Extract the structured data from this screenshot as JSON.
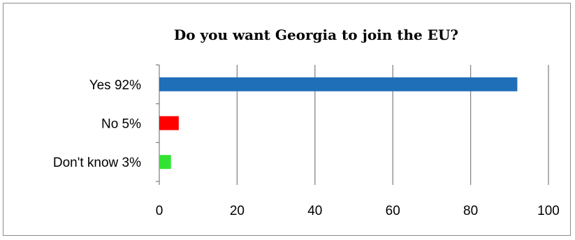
{
  "chart_data": {
    "type": "bar",
    "orientation": "horizontal",
    "title": "Do you want Georgia to join the EU?",
    "categories": [
      "Yes 92%",
      "No 5%",
      "Don't know 3%"
    ],
    "values": [
      92,
      5,
      3
    ],
    "colors": [
      "#1f6fb8",
      "#ff0000",
      "#33e333"
    ],
    "xlim": [
      0,
      100
    ],
    "xticks": [
      0,
      20,
      40,
      60,
      80,
      100
    ],
    "grid": true,
    "legend": false
  }
}
